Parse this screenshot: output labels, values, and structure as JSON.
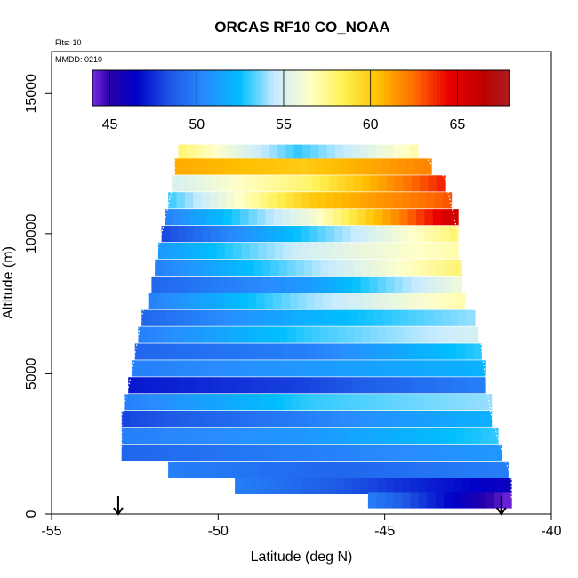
{
  "chart_data": {
    "type": "heatmap",
    "title": "ORCAS RF10 CO_NOAA",
    "xlabel": "Latitude (deg N)",
    "ylabel": "Altitude (m)",
    "xlim": [
      -55,
      -40
    ],
    "ylim": [
      0,
      16500
    ],
    "xticks": [
      -55,
      -50,
      -45,
      -40
    ],
    "yticks": [
      0,
      5000,
      10000,
      15000
    ],
    "annotations": {
      "flights": "Flts: 10",
      "date": "MMDD: 0210"
    },
    "colorbar": {
      "min": 44,
      "max": 68,
      "ticks": [
        45,
        50,
        55,
        60,
        65
      ]
    },
    "markers": {
      "arrow_lats": [
        -53.0,
        -41.5
      ]
    },
    "domain_rows": [
      {
        "alt": 13000,
        "lo": -51.3,
        "hi": -44.0
      },
      {
        "alt": 12000,
        "lo": -51.3,
        "hi": -43.2
      },
      {
        "alt": 10000,
        "lo": -51.7,
        "hi": -42.8
      },
      {
        "alt": 8500,
        "lo": -52.0,
        "hi": -42.7
      },
      {
        "alt": 7000,
        "lo": -52.3,
        "hi": -42.2
      },
      {
        "alt": 5000,
        "lo": -52.6,
        "hi": -42.0
      },
      {
        "alt": 3500,
        "lo": -52.9,
        "hi": -41.8
      },
      {
        "alt": 2300,
        "lo": -52.9,
        "hi": -41.5
      },
      {
        "alt": 1300,
        "lo": -52.9,
        "hi": -41.2
      },
      {
        "alt": 500,
        "lo": -45.5,
        "hi": -41.2
      }
    ],
    "levels": [
      {
        "alt": 12900,
        "lat": [
          -51.2,
          -44.0
        ],
        "co": [
          58,
          53,
          57
        ]
      },
      {
        "alt": 12400,
        "lat": [
          -51.3,
          -43.6
        ],
        "co": [
          61,
          60,
          62
        ]
      },
      {
        "alt": 11800,
        "lat": [
          -51.4,
          -43.2
        ],
        "co": [
          55,
          58,
          64
        ]
      },
      {
        "alt": 11200,
        "lat": [
          -51.5,
          -43.0
        ],
        "co": [
          53,
          60,
          63
        ]
      },
      {
        "alt": 10600,
        "lat": [
          -51.6,
          -42.8
        ],
        "co": [
          50,
          56,
          66
        ]
      },
      {
        "alt": 10000,
        "lat": [
          -51.7,
          -42.8
        ],
        "co": [
          48,
          53,
          58
        ]
      },
      {
        "alt": 9400,
        "lat": [
          -51.8,
          -42.8
        ],
        "co": [
          51,
          55,
          57
        ]
      },
      {
        "alt": 8800,
        "lat": [
          -51.9,
          -42.7
        ],
        "co": [
          50,
          54,
          58
        ]
      },
      {
        "alt": 8200,
        "lat": [
          -52.0,
          -42.7
        ],
        "co": [
          49,
          51,
          56
        ]
      },
      {
        "alt": 7600,
        "lat": [
          -52.1,
          -42.6
        ],
        "co": [
          50,
          54,
          57
        ]
      },
      {
        "alt": 7000,
        "lat": [
          -52.3,
          -42.3
        ],
        "co": [
          49,
          52,
          54
        ]
      },
      {
        "alt": 6400,
        "lat": [
          -52.4,
          -42.2
        ],
        "co": [
          50,
          53,
          55
        ]
      },
      {
        "alt": 5800,
        "lat": [
          -52.5,
          -42.1
        ],
        "co": [
          49,
          50,
          53
        ]
      },
      {
        "alt": 5200,
        "lat": [
          -52.6,
          -42.0
        ],
        "co": [
          50,
          51,
          52
        ]
      },
      {
        "alt": 4600,
        "lat": [
          -52.7,
          -42.0
        ],
        "co": [
          47,
          48,
          50
        ]
      },
      {
        "alt": 4000,
        "lat": [
          -52.8,
          -41.8
        ],
        "co": [
          50,
          53,
          54
        ]
      },
      {
        "alt": 3400,
        "lat": [
          -52.9,
          -41.8
        ],
        "co": [
          48,
          50,
          52
        ]
      },
      {
        "alt": 2800,
        "lat": [
          -52.9,
          -41.6
        ],
        "co": [
          50,
          51,
          53
        ]
      },
      {
        "alt": 2200,
        "lat": [
          -52.9,
          -41.5
        ],
        "co": [
          49,
          50,
          51
        ]
      },
      {
        "alt": 1600,
        "lat": [
          -51.5,
          -41.3
        ],
        "co": [
          50,
          49,
          50
        ]
      },
      {
        "alt": 1000,
        "lat": [
          -49.5,
          -41.2
        ],
        "co": [
          50,
          48,
          46
        ]
      },
      {
        "alt": 500,
        "lat": [
          -45.5,
          -41.2
        ],
        "co": [
          50,
          47,
          44
        ]
      }
    ]
  }
}
